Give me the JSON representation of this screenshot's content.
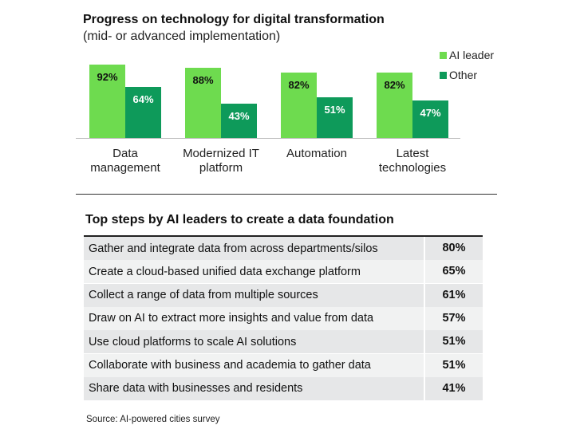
{
  "chart_data": {
    "type": "bar",
    "title": "Progress on technology for digital transformation",
    "subtitle": "(mid- or advanced implementation)",
    "categories": [
      "Data management",
      "Modernized IT platform",
      "Automation",
      "Latest technologies"
    ],
    "series": [
      {
        "name": "AI leader",
        "color": "#6edb4f",
        "values": [
          92,
          88,
          82,
          82
        ],
        "value_labels": [
          "92%",
          "88%",
          "82%",
          "82%"
        ]
      },
      {
        "name": "Other",
        "color": "#0e9a5a",
        "values": [
          64,
          43,
          51,
          47
        ],
        "value_labels": [
          "64%",
          "43%",
          "51%",
          "47%"
        ]
      }
    ]
  },
  "table": {
    "title": "Top steps by AI leaders to create a data foundation",
    "rows": [
      [
        "Gather and integrate data from across departments/silos",
        "80%"
      ],
      [
        "Create a cloud-based unified data exchange platform",
        "65%"
      ],
      [
        "Collect a range of data from multiple sources",
        "61%"
      ],
      [
        "Draw on AI to extract more insights and value from data",
        "57%"
      ],
      [
        "Use cloud platforms to scale AI solutions",
        "51%"
      ],
      [
        "Collaborate with business and academia to gather data",
        "51%"
      ],
      [
        "Share data with businesses and residents",
        "41%"
      ]
    ]
  },
  "source": "Source: AI-powered cities survey"
}
